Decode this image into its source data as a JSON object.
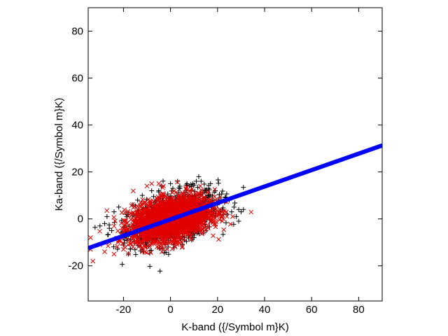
{
  "chart_data": {
    "type": "scatter",
    "xlabel": "K-band ({/Symbol m}K)",
    "ylabel": "Ka-band ({/Symbol m}K)",
    "xlim": [
      -35,
      90
    ],
    "ylim": [
      -35,
      90
    ],
    "xticks": [
      -20,
      0,
      20,
      40,
      60,
      80
    ],
    "yticks": [
      -20,
      0,
      20,
      40,
      60,
      80
    ],
    "grid": false,
    "legend": "none",
    "series": [
      {
        "marker": "plus",
        "color": "#000000",
        "description_points": [
          [
            -28,
            -2
          ],
          [
            -25,
            -5
          ],
          [
            -22,
            5
          ],
          [
            -20,
            -8
          ],
          [
            -18,
            2
          ],
          [
            -15,
            -6
          ],
          [
            -14,
            8
          ],
          [
            -12,
            10
          ],
          [
            -10,
            -10
          ],
          [
            -8,
            12
          ],
          [
            -6,
            -9
          ],
          [
            -4,
            14
          ],
          [
            -2,
            -11
          ],
          [
            0,
            15
          ],
          [
            2,
            -10
          ],
          [
            4,
            13
          ],
          [
            6,
            -9
          ],
          [
            8,
            14
          ],
          [
            10,
            -8
          ],
          [
            12,
            18
          ],
          [
            13,
            16
          ],
          [
            14,
            -6
          ],
          [
            15,
            12
          ],
          [
            16,
            10
          ],
          [
            17,
            15
          ],
          [
            18,
            8
          ],
          [
            19,
            12
          ],
          [
            20,
            6
          ],
          [
            21,
            9
          ],
          [
            22,
            4
          ],
          [
            23,
            7
          ],
          [
            24,
            2
          ],
          [
            25,
            8
          ],
          [
            26,
            3
          ],
          [
            27,
            5
          ],
          [
            28,
            1
          ],
          [
            29,
            4
          ],
          [
            30,
            3
          ],
          [
            31,
            4
          ],
          [
            29,
            -1
          ],
          [
            -24,
            3
          ],
          [
            -26,
            -4
          ],
          [
            -19,
            -3
          ],
          [
            -16,
            6
          ],
          [
            -13,
            -9
          ],
          [
            11,
            16
          ],
          [
            9,
            -9
          ],
          [
            7,
            15
          ],
          [
            -30,
            -3
          ],
          [
            -27,
            1
          ],
          [
            5,
            -11
          ],
          [
            3,
            16
          ],
          [
            -1,
            -12
          ],
          [
            1,
            13
          ],
          [
            -5,
            12
          ],
          [
            -7,
            -10
          ]
        ]
      },
      {
        "marker": "cross",
        "color": "#e00000",
        "centroid": [
          0,
          0
        ],
        "spread_x": 8,
        "spread_y": 4.5,
        "correlation": 0.35,
        "outliers": [
          [
            -34,
            -8
          ],
          [
            -34,
            -13
          ],
          [
            -33,
            -18
          ],
          [
            -30,
            -11
          ],
          [
            -28,
            -14
          ],
          [
            -26,
            -10
          ],
          [
            -24,
            -15
          ],
          [
            -22,
            -9
          ],
          [
            -20,
            -13
          ],
          [
            -18,
            -11
          ],
          [
            -16,
            -12
          ],
          [
            -14,
            -10
          ],
          [
            -10,
            14
          ],
          [
            -8,
            15
          ],
          [
            -5,
            15
          ],
          [
            -3,
            14
          ],
          [
            2,
            -12
          ],
          [
            5,
            -10
          ],
          [
            8,
            12
          ],
          [
            12,
            11
          ],
          [
            14,
            9
          ],
          [
            16,
            -4
          ],
          [
            18,
            6
          ],
          [
            20,
            2
          ],
          [
            22,
            -1
          ],
          [
            24,
            1
          ],
          [
            -12,
            -14
          ]
        ]
      },
      {
        "marker": "line",
        "color": "#0000ff",
        "description": "regression line",
        "x": [
          -35,
          90
        ],
        "y": [
          -12.5,
          31.3
        ]
      }
    ]
  }
}
